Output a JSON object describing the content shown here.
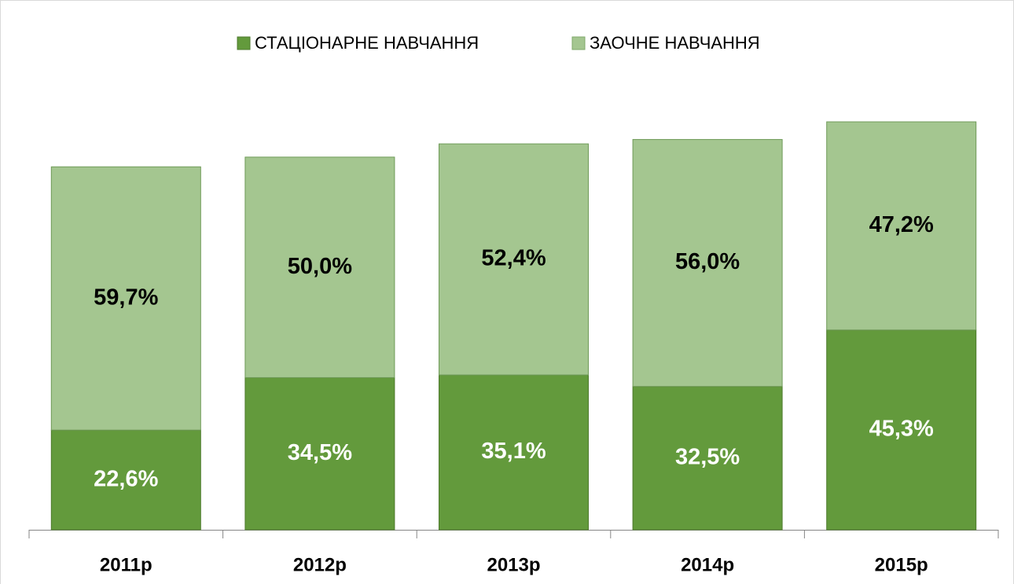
{
  "chart_data": {
    "type": "stacked_bar",
    "categories": [
      "2011р",
      "2012р",
      "2013р",
      "2014р",
      "2015р"
    ],
    "series": [
      {
        "name": "СТАЦІОНАРНЕ НАВЧАННЯ",
        "color": "#639a3c",
        "values": [
          22.6,
          34.5,
          35.1,
          32.5,
          45.3
        ],
        "value_labels": [
          "22,6%",
          "34,5%",
          "35,1%",
          "32,5%",
          "45,3%"
        ]
      },
      {
        "name": "ЗАОЧНЕ НАВЧАННЯ",
        "color": "#a4c690",
        "values": [
          59.7,
          50.0,
          52.4,
          56.0,
          47.2
        ],
        "value_labels": [
          "59,7%",
          "50,0%",
          "52,4%",
          "56,0%",
          "47,2%"
        ]
      }
    ],
    "legend": "top"
  }
}
